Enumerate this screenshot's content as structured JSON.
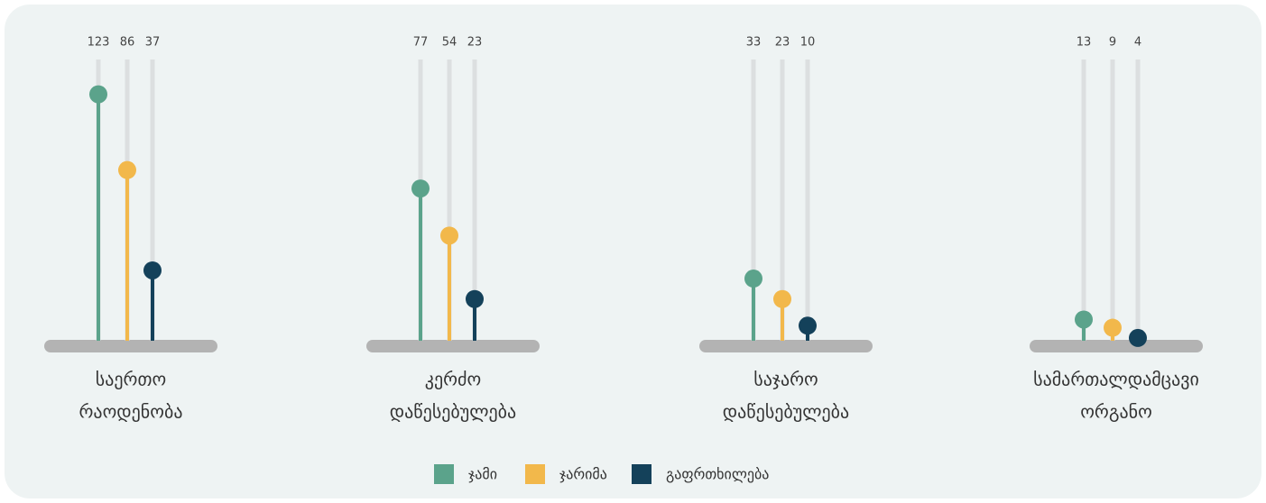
{
  "chart_data": {
    "type": "lollipop",
    "categories": [
      [
        "საერთო",
        "რაოდენობა"
      ],
      [
        "კერძო",
        "დაწესებულება"
      ],
      [
        "საჯარო",
        "დაწესებულება"
      ],
      [
        "სამართალდამცავი",
        "ორგანო"
      ]
    ],
    "series": [
      {
        "name": "ჯამი",
        "color": "#5ba38b",
        "values": [
          123,
          77,
          33,
          13
        ]
      },
      {
        "name": "ჯარიმა",
        "color": "#f2b84b",
        "values": [
          86,
          54,
          23,
          9
        ]
      },
      {
        "name": "გაფრთხილება",
        "color": "#14415a",
        "values": [
          37,
          23,
          10,
          4
        ]
      }
    ],
    "ylim": [
      0,
      140
    ]
  }
}
